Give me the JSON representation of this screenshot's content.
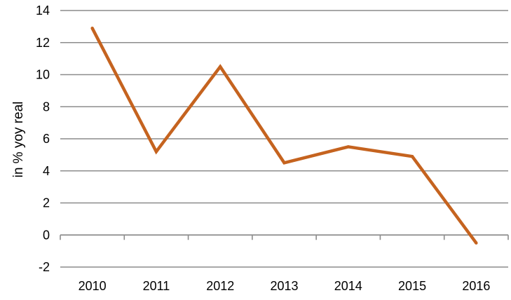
{
  "chart_data": {
    "type": "line",
    "title": "",
    "xlabel": "",
    "ylabel": "in % yoy real",
    "categories": [
      "2010",
      "2011",
      "2012",
      "2013",
      "2014",
      "2015",
      "2016"
    ],
    "series": [
      {
        "values": [
          12.9,
          5.2,
          10.5,
          4.5,
          5.5,
          4.9,
          -0.5
        ]
      }
    ],
    "ylim": [
      -2,
      14
    ],
    "yticks": [
      "-2",
      "0",
      "2",
      "4",
      "6",
      "8",
      "10",
      "12",
      "14"
    ],
    "grid": true,
    "legend": "none",
    "colors": {
      "line": "#C5631F",
      "grid": "#8C8C8C",
      "axis": "#8C8C8C"
    }
  }
}
